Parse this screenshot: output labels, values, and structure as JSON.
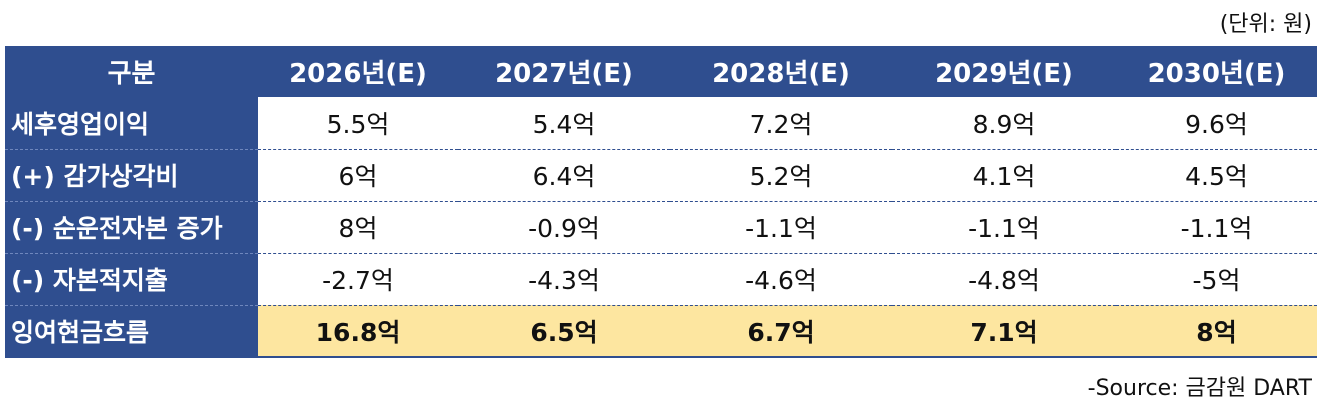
{
  "unit_label": "(단위: 원)",
  "source_label": "-Source: 금감원 DART",
  "table": {
    "header": [
      "구분",
      "2026년(E)",
      "2027년(E)",
      "2028년(E)",
      "2029년(E)",
      "2030년(E)"
    ],
    "rows": [
      {
        "label": "세후영업이익",
        "values": [
          "5.5억",
          "5.4억",
          "7.2억",
          "8.9억",
          "9.6억"
        ]
      },
      {
        "label": "(+) 감가상각비",
        "values": [
          "6억",
          "6.4억",
          "5.2억",
          "4.1억",
          "4.5억"
        ]
      },
      {
        "label": "(-) 순운전자본 증가",
        "values": [
          "8억",
          "-0.9억",
          "-1.1억",
          "-1.1억",
          "-1.1억"
        ]
      },
      {
        "label": "(-) 자본적지출",
        "values": [
          "-2.7억",
          "-4.3억",
          "-4.6억",
          "-4.8억",
          "-5억"
        ]
      },
      {
        "label": "잉여현금흐름",
        "values": [
          "16.8억",
          "6.5억",
          "6.7억",
          "7.1억",
          "8억"
        ]
      }
    ]
  },
  "colors": {
    "header_bg": "#2f4e8f",
    "total_row_bg": "#fde6a0"
  }
}
